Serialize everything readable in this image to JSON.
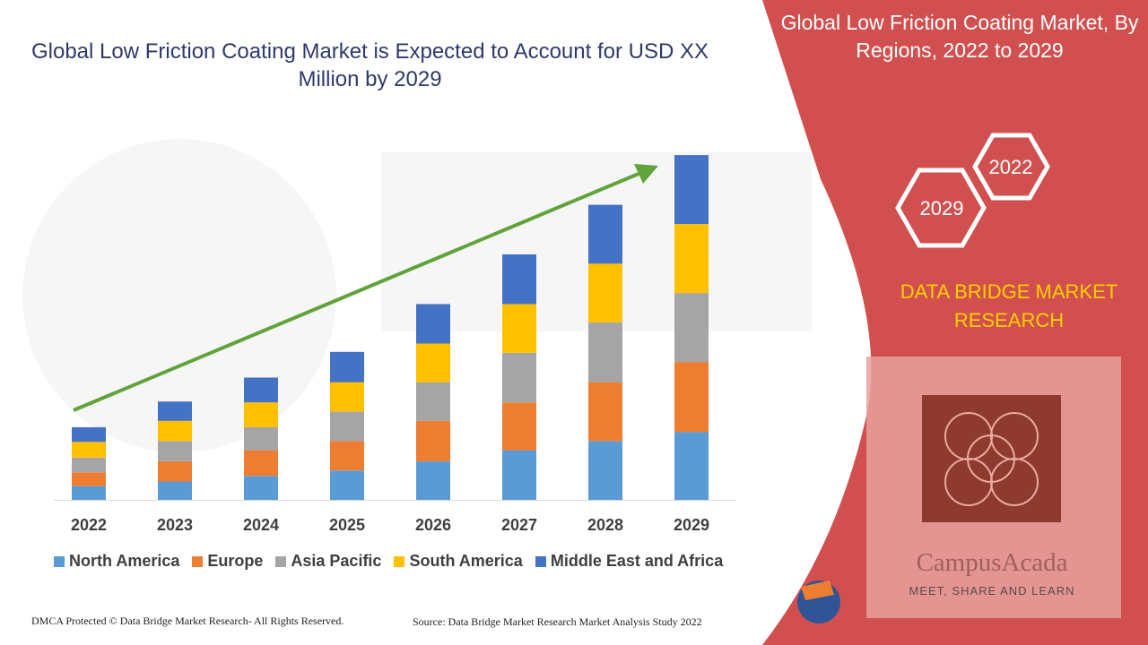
{
  "chart_data": {
    "type": "bar",
    "stacked": true,
    "title": "Global Low Friction Coating Market is Expected to Account for USD XX Million by 2029",
    "categories": [
      "2022",
      "2023",
      "2024",
      "2025",
      "2026",
      "2027",
      "2028",
      "2029"
    ],
    "series": [
      {
        "name": "North America",
        "color": "#5b9bd5",
        "values": [
          15,
          20,
          26,
          32,
          42,
          54,
          64,
          74
        ]
      },
      {
        "name": "Europe",
        "color": "#ed7d31",
        "values": [
          15,
          22,
          28,
          32,
          44,
          52,
          64,
          76
        ]
      },
      {
        "name": "Asia Pacific",
        "color": "#a5a5a5",
        "values": [
          16,
          22,
          25,
          32,
          42,
          54,
          65,
          75
        ]
      },
      {
        "name": "South America",
        "color": "#ffc000",
        "values": [
          17,
          22,
          27,
          32,
          42,
          53,
          64,
          75
        ]
      },
      {
        "name": "Middle East and Africa",
        "color": "#4472c4",
        "values": [
          16,
          21,
          27,
          33,
          43,
          54,
          64,
          75
        ]
      }
    ],
    "ylim": [
      0,
      380
    ],
    "grid": false,
    "legend": "bottom",
    "trend_arrow": true
  },
  "header": {
    "chart_title": "Global Low Friction Coating Market is Expected to Account for USD XX Million by 2029"
  },
  "side_panel": {
    "title": "Global Low Friction Coating Market, By Regions, 2022 to 2029",
    "hex_top_label": "2022",
    "hex_bottom_label": "2029",
    "brand": "DATA BRIDGE MARKET RESEARCH",
    "panel_color": "#d24f4f",
    "brand_color": "#ffd200"
  },
  "watermark": {
    "name": "CampusAcada",
    "tagline": "MEET, SHARE AND LEARN"
  },
  "footer": {
    "copyright": "DMCA Protected © Data Bridge Market Research- All Rights Reserved.",
    "source": "Source: Data Bridge Market Research Market Analysis Study 2022"
  }
}
